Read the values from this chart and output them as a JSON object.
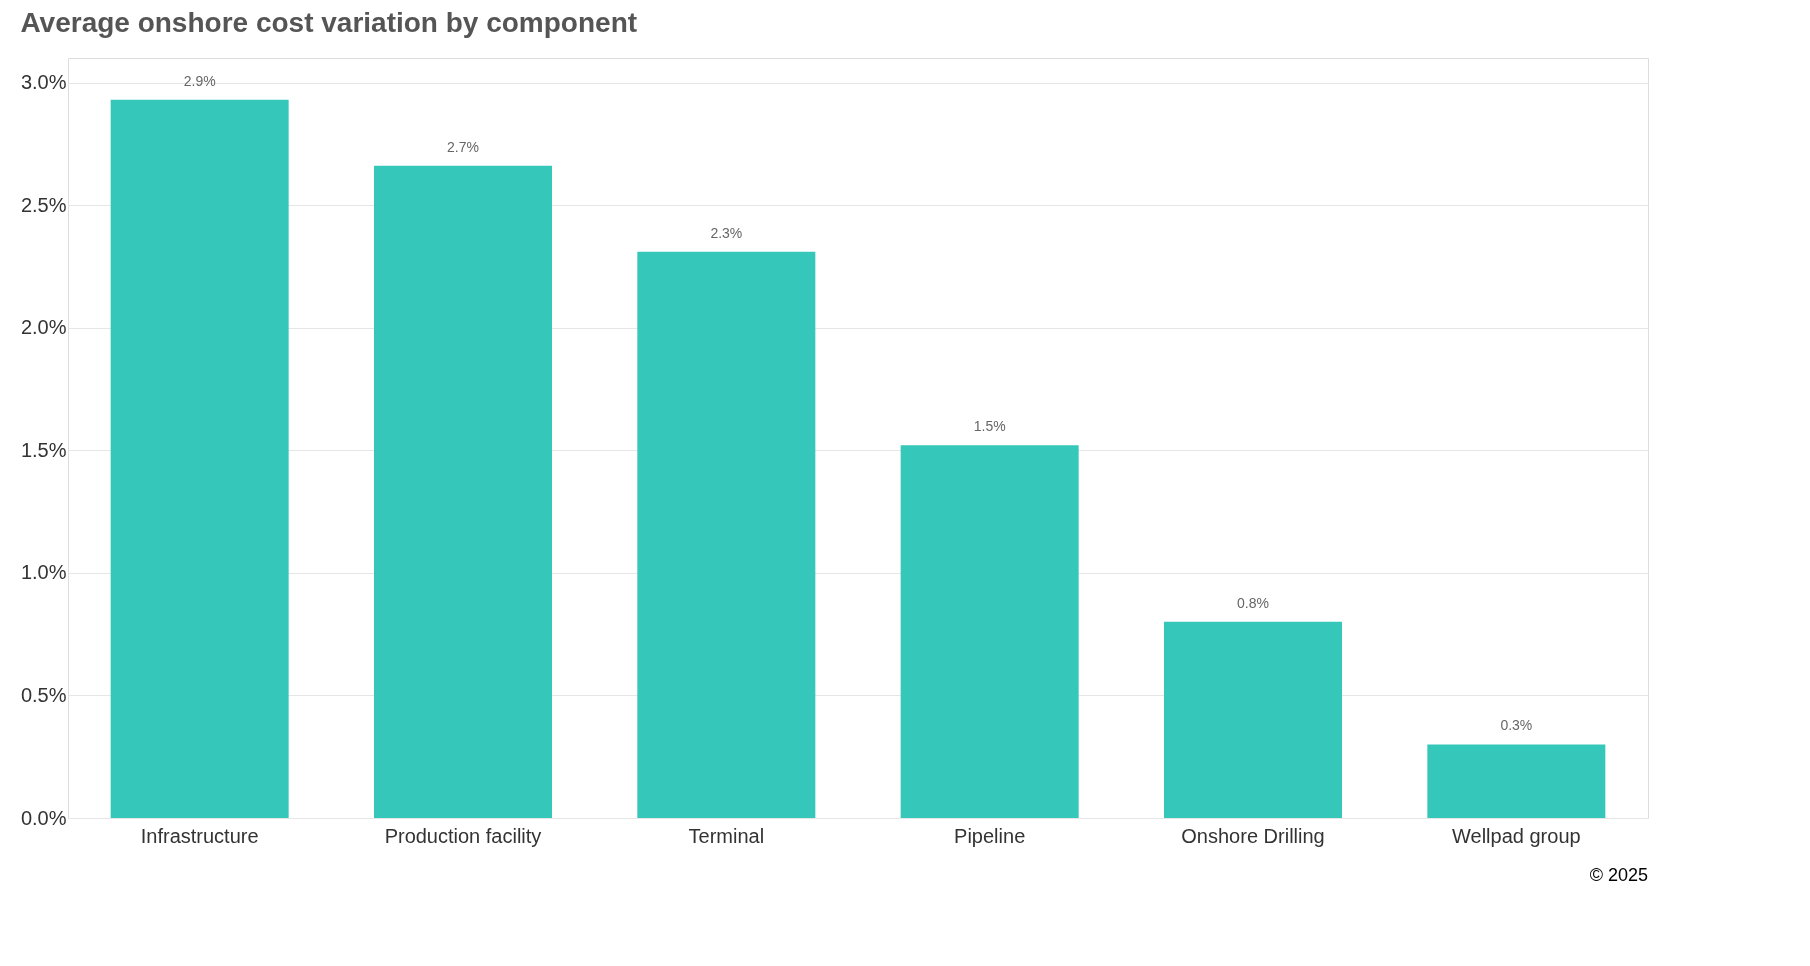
{
  "chart_data": {
    "type": "bar",
    "title": "Average onshore cost variation by component",
    "categories": [
      "Infrastructure",
      "Production facility",
      "Terminal",
      "Pipeline",
      "Onshore Drilling",
      "Wellpad group"
    ],
    "values": [
      2.93,
      2.66,
      2.31,
      1.52,
      0.8,
      0.3
    ],
    "value_labels": [
      "2.9%",
      "2.7%",
      "2.3%",
      "1.5%",
      "0.8%",
      "0.3%"
    ],
    "color": "#36c7bb",
    "ylim": [
      0,
      3.1
    ],
    "yticks": [
      {
        "value": 0,
        "label": "0.0%"
      },
      {
        "value": 0.5,
        "label": "0.5%"
      },
      {
        "value": 1,
        "label": "1.0%"
      },
      {
        "value": 1.5,
        "label": "1.5%"
      },
      {
        "value": 2,
        "label": "2.0%"
      },
      {
        "value": 2.5,
        "label": "2.5%"
      },
      {
        "value": 3,
        "label": "3.0%"
      }
    ],
    "grid": "y",
    "annotations": [
      "© 2025"
    ]
  }
}
